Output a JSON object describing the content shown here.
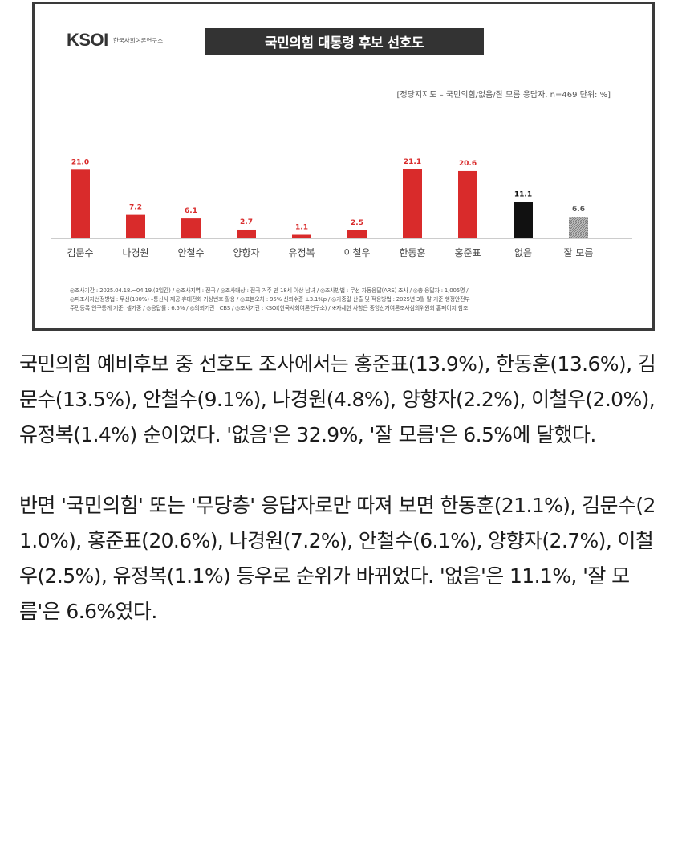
{
  "chart": {
    "logo_text": "KSOI",
    "logo_subtitle": "한국사회여론연구소",
    "title": "국민의힘 대통령 후보 선호도",
    "subtitle": "[정당지지도 – 국민의힘/없음/잘 모름 응답자, n=469 단위: %]",
    "colors": {
      "main": "#d92b2b",
      "none": "#111111",
      "dontknow": "#9a9a9a"
    },
    "footnotes": [
      "◎조사기간 : 2025.04.18.~04.19.(2일간) / ◎조사지역 : 전국 / ◎조사대상 : 전국 거주 만 18세 이상 남녀 / ◎조사방법 : 무선 자동응답(ARS) 조사 / ◎총 응답자 : 1,005명 /",
      "◎피조사자선정방법 : 무선(100%) –통신사 제공 휴대전화 가상번호 활용 / ◎표본오차 : 95% 신뢰수준 ±3.1%p / ◎가중값 산출 및 적용방법 : 2025년 3월 말 기준 행정안전부",
      "주민등록 인구통계 기준, 셀가중 / ◎응답률 : 6.5% / ◎의뢰기관 : CBS / ◎조사기관 : KSOI(한국사회여론연구소) / ※자세한 사항은 중앙선거여론조사심의위원회 홈페이지 참조"
    ]
  },
  "chart_data": {
    "type": "bar",
    "title": "국민의힘 대통령 후보 선호도",
    "subtitle": "[정당지지도 – 국민의힘/없음/잘 모름 응답자, n=469 단위: %]",
    "categories": [
      "김문수",
      "나경원",
      "안철수",
      "양향자",
      "유정복",
      "이철우",
      "한동훈",
      "홍준표",
      "없음",
      "잘 모름"
    ],
    "values": [
      21.0,
      7.2,
      6.1,
      2.7,
      1.1,
      2.5,
      21.1,
      20.6,
      11.1,
      6.6
    ],
    "value_labels": [
      "21.0",
      "7.2",
      "6.1",
      "2.7",
      "1.1",
      "2.5",
      "21.1",
      "20.6",
      "11.1",
      "6.6"
    ],
    "bar_styles": [
      "main",
      "main",
      "main",
      "main",
      "main",
      "main",
      "main",
      "main",
      "none",
      "dontknow"
    ],
    "ylim": [
      0,
      25
    ],
    "grid": false
  },
  "article": {
    "paragraph1": "국민의힘 예비후보 중 선호도 조사에서는 홍준표(13.9%), 한동훈(13.6%), 김문수(13.5%), 안철수(9.1%), 나경원(4.8%), 양향자(2.2%), 이철우(2.0%), 유정복(1.4%) 순이었다. '없음'은 32.9%, '잘 모름'은 6.5%에 달했다.",
    "paragraph2": "반면 '국민의힘' 또는 '무당층' 응답자로만 따져 보면 한동훈(21.1%), 김문수(21.0%), 홍준표(20.6%), 나경원(7.2%), 안철수(6.1%), 양향자(2.7%), 이철우(2.5%), 유정복(1.1%) 등우로 순위가 바뀌었다. '없음'은 11.1%, '잘 모름'은 6.6%였다."
  }
}
